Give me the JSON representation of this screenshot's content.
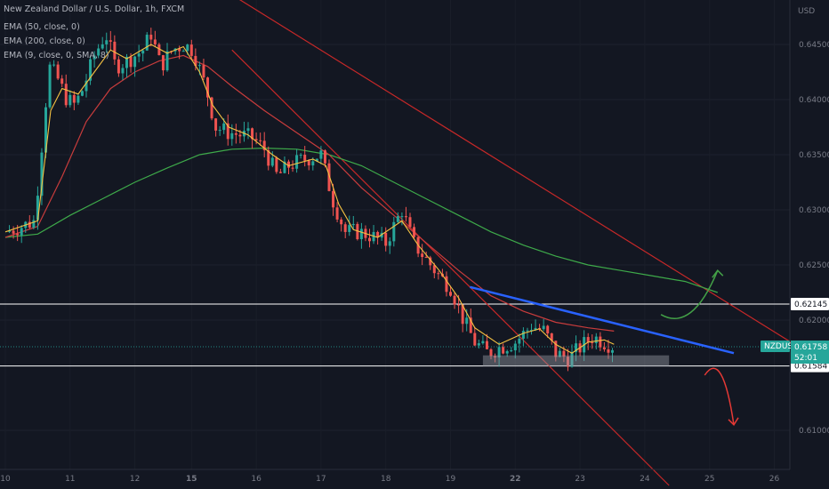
{
  "header": {
    "title": "New Zealand Dollar / U.S. Dollar, 1h, FXCM",
    "indicators": [
      "EMA (50, close, 0)",
      "EMA (200, close, 0)",
      "EMA (9, close, 0, SMA, 8)"
    ]
  },
  "axis": {
    "currency": "USD"
  },
  "price_tags": {
    "symbol": "NZDUSD",
    "last": "0.61758",
    "countdown": "52:01",
    "resistance": "0.62145",
    "support": "0.61584"
  },
  "colors": {
    "background": "#131722",
    "up": "#26a69a",
    "down": "#ef5350",
    "ema9": "#f5c242",
    "ema50": "#c83c3c",
    "ema200": "#3eaa4a",
    "trendline": "#2962ff",
    "channel": "#c62828"
  },
  "chart_data": {
    "type": "candlestick",
    "symbol": "NZDUSD",
    "timeframe": "1h",
    "source": "FXCM",
    "y_ticks": [
      0.645,
      0.64,
      0.635,
      0.63,
      0.625,
      0.62,
      0.61
    ],
    "x_tick_labels": [
      "10",
      "11",
      "12",
      "15",
      "16",
      "17",
      "18",
      "19",
      "22",
      "23",
      "24",
      "25",
      "26"
    ],
    "x_tick_positions": [
      0,
      4,
      8,
      11.5,
      15.5,
      19.5,
      23.5,
      27.5,
      31.5,
      35.5,
      39.5,
      43.5,
      47.5
    ],
    "bold_tick_labels": [
      "15",
      "22"
    ],
    "horizontal_levels": [
      0.62145,
      0.61584
    ],
    "last_price": 0.61758,
    "candle_path": [
      [
        0.0,
        0.628
      ],
      [
        1.0,
        0.6285
      ],
      [
        1.8,
        0.629
      ],
      [
        2.2,
        0.635
      ],
      [
        2.7,
        0.643
      ],
      [
        3.2,
        0.642
      ],
      [
        3.8,
        0.64
      ],
      [
        4.3,
        0.6395
      ],
      [
        4.8,
        0.641
      ],
      [
        5.5,
        0.644
      ],
      [
        6.2,
        0.646
      ],
      [
        6.8,
        0.643
      ],
      [
        7.5,
        0.6435
      ],
      [
        8.0,
        0.644
      ],
      [
        8.5,
        0.6445
      ],
      [
        9.0,
        0.646
      ],
      [
        9.6,
        0.643
      ],
      [
        10.3,
        0.6445
      ],
      [
        11.0,
        0.645
      ],
      [
        11.6,
        0.6445
      ],
      [
        12.4,
        0.641
      ],
      [
        13.0,
        0.6375
      ],
      [
        13.8,
        0.637
      ],
      [
        14.5,
        0.6368
      ],
      [
        15.3,
        0.6365
      ],
      [
        16.0,
        0.6355
      ],
      [
        16.8,
        0.633
      ],
      [
        17.5,
        0.634
      ],
      [
        18.3,
        0.6345
      ],
      [
        19.0,
        0.6348
      ],
      [
        19.5,
        0.635
      ],
      [
        20.2,
        0.631
      ],
      [
        21.0,
        0.628
      ],
      [
        21.8,
        0.628
      ],
      [
        22.5,
        0.6277
      ],
      [
        23.5,
        0.627
      ],
      [
        24.5,
        0.63
      ],
      [
        25.2,
        0.627
      ],
      [
        26.0,
        0.6255
      ],
      [
        26.8,
        0.624
      ],
      [
        27.5,
        0.623
      ],
      [
        28.3,
        0.62
      ],
      [
        29.0,
        0.618
      ],
      [
        29.8,
        0.617
      ],
      [
        30.5,
        0.6175
      ],
      [
        31.5,
        0.618
      ],
      [
        32.5,
        0.6195
      ],
      [
        33.3,
        0.619
      ],
      [
        34.0,
        0.617
      ],
      [
        34.8,
        0.6165
      ],
      [
        35.5,
        0.6175
      ],
      [
        36.3,
        0.6185
      ],
      [
        37.0,
        0.618
      ],
      [
        37.6,
        0.6176
      ]
    ],
    "ema9_path": [
      [
        0.0,
        0.628
      ],
      [
        2.0,
        0.629
      ],
      [
        2.8,
        0.639
      ],
      [
        3.5,
        0.641
      ],
      [
        4.5,
        0.6405
      ],
      [
        5.5,
        0.6425
      ],
      [
        6.5,
        0.6445
      ],
      [
        7.5,
        0.6437
      ],
      [
        9.0,
        0.645
      ],
      [
        10.0,
        0.6442
      ],
      [
        11.0,
        0.6448
      ],
      [
        12.0,
        0.6425
      ],
      [
        12.8,
        0.6395
      ],
      [
        13.8,
        0.6375
      ],
      [
        15.0,
        0.6368
      ],
      [
        16.5,
        0.635
      ],
      [
        17.5,
        0.634
      ],
      [
        19.0,
        0.6346
      ],
      [
        19.8,
        0.634
      ],
      [
        20.6,
        0.6305
      ],
      [
        21.5,
        0.6282
      ],
      [
        23.0,
        0.6275
      ],
      [
        24.5,
        0.629
      ],
      [
        25.5,
        0.6268
      ],
      [
        26.8,
        0.6245
      ],
      [
        28.0,
        0.622
      ],
      [
        29.0,
        0.6193
      ],
      [
        30.5,
        0.6178
      ],
      [
        32.0,
        0.6188
      ],
      [
        33.0,
        0.6192
      ],
      [
        34.0,
        0.6178
      ],
      [
        35.0,
        0.617
      ],
      [
        36.0,
        0.618
      ],
      [
        37.0,
        0.6182
      ],
      [
        37.6,
        0.6178
      ]
    ],
    "ema50_path": [
      [
        0.0,
        0.6275
      ],
      [
        2.0,
        0.6285
      ],
      [
        3.5,
        0.633
      ],
      [
        5.0,
        0.638
      ],
      [
        6.5,
        0.641
      ],
      [
        8.0,
        0.6425
      ],
      [
        9.5,
        0.6435
      ],
      [
        11.0,
        0.644
      ],
      [
        12.5,
        0.643
      ],
      [
        14.0,
        0.6412
      ],
      [
        16.0,
        0.639
      ],
      [
        18.0,
        0.637
      ],
      [
        20.0,
        0.635
      ],
      [
        22.0,
        0.632
      ],
      [
        24.0,
        0.6295
      ],
      [
        26.0,
        0.627
      ],
      [
        28.0,
        0.6245
      ],
      [
        30.0,
        0.6222
      ],
      [
        32.0,
        0.6208
      ],
      [
        34.0,
        0.6198
      ],
      [
        36.0,
        0.6193
      ],
      [
        37.6,
        0.619
      ]
    ],
    "ema200_path": [
      [
        0.0,
        0.6275
      ],
      [
        2.0,
        0.6278
      ],
      [
        4.0,
        0.6295
      ],
      [
        6.0,
        0.631
      ],
      [
        8.0,
        0.6325
      ],
      [
        10.0,
        0.6338
      ],
      [
        12.0,
        0.635
      ],
      [
        14.0,
        0.6355
      ],
      [
        16.0,
        0.6356
      ],
      [
        18.0,
        0.6355
      ],
      [
        20.0,
        0.635
      ],
      [
        22.0,
        0.634
      ],
      [
        24.0,
        0.6325
      ],
      [
        26.0,
        0.631
      ],
      [
        28.0,
        0.6295
      ],
      [
        30.0,
        0.628
      ],
      [
        32.0,
        0.6268
      ],
      [
        34.0,
        0.6258
      ],
      [
        36.0,
        0.625
      ],
      [
        38.0,
        0.6245
      ],
      [
        40.0,
        0.624
      ],
      [
        42.0,
        0.6235
      ],
      [
        44.0,
        0.6225
      ]
    ],
    "trendline": [
      [
        28.7,
        0.623
      ],
      [
        45.0,
        0.617
      ]
    ],
    "channel_upper": [
      [
        14.0,
        0.6495
      ],
      [
        54.0,
        0.613
      ]
    ],
    "channel_lower": [
      [
        14.0,
        0.6445
      ],
      [
        41.0,
        0.605
      ]
    ],
    "support_box": [
      [
        29.5,
        0.6168
      ],
      [
        41.0,
        0.6158
      ]
    ],
    "arrow_up": [
      [
        40.5,
        0.6205
      ],
      [
        44.0,
        0.6245
      ]
    ],
    "arrow_down": [
      [
        43.2,
        0.615
      ],
      [
        45.0,
        0.6105
      ]
    ]
  }
}
